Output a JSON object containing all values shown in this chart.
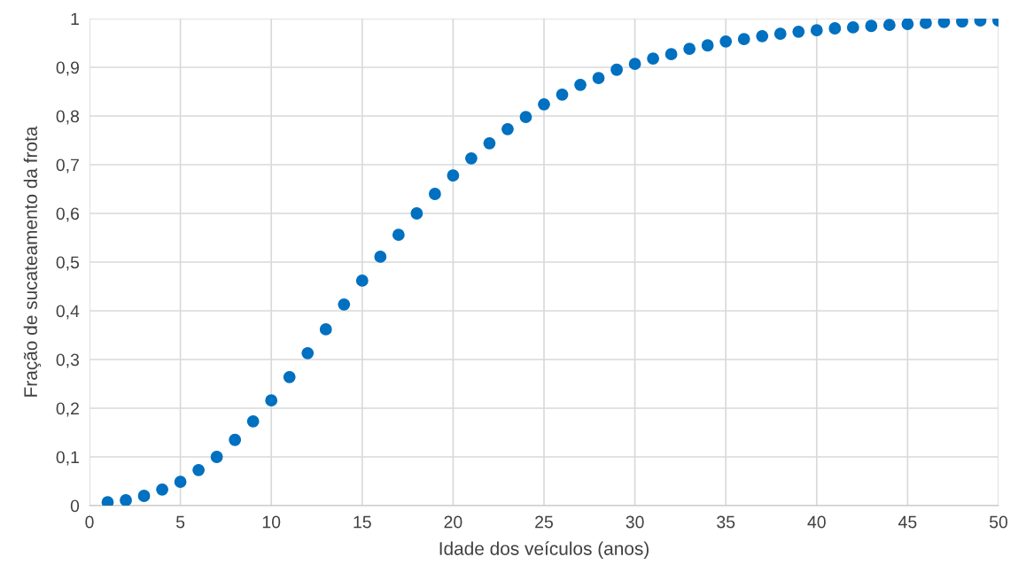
{
  "chart_data": {
    "type": "scatter",
    "xlabel": "Idade dos veículos (anos)",
    "ylabel": "Fração de sucateamento da frota",
    "x": [
      1,
      2,
      3,
      4,
      5,
      6,
      7,
      8,
      9,
      10,
      11,
      12,
      13,
      14,
      15,
      16,
      17,
      18,
      19,
      20,
      21,
      22,
      23,
      24,
      25,
      26,
      27,
      28,
      29,
      30,
      31,
      32,
      33,
      34,
      35,
      36,
      37,
      38,
      39,
      40,
      41,
      42,
      43,
      44,
      45,
      46,
      47,
      48,
      49,
      50
    ],
    "series": [
      {
        "color": "#0070c0",
        "values": [
          0.007,
          0.011,
          0.02,
          0.033,
          0.049,
          0.073,
          0.1,
          0.135,
          0.173,
          0.216,
          0.264,
          0.313,
          0.362,
          0.413,
          0.462,
          0.511,
          0.556,
          0.6,
          0.64,
          0.678,
          0.713,
          0.744,
          0.773,
          0.798,
          0.824,
          0.844,
          0.864,
          0.878,
          0.895,
          0.907,
          0.918,
          0.927,
          0.938,
          0.945,
          0.953,
          0.958,
          0.964,
          0.969,
          0.973,
          0.976,
          0.98,
          0.982,
          0.985,
          0.987,
          0.989,
          0.991,
          0.993,
          0.994,
          0.996,
          0.996
        ]
      }
    ],
    "marker": "circle",
    "xlim": [
      0,
      50
    ],
    "xticks": [
      0,
      5,
      10,
      15,
      20,
      25,
      30,
      35,
      40,
      45,
      50
    ],
    "ylim": [
      0,
      1
    ],
    "yticks": [
      0,
      {
        "value": 0.1,
        "label": "0,1"
      },
      {
        "value": 0.2,
        "label": "0,2"
      },
      {
        "value": 0.3,
        "label": "0,3"
      },
      {
        "value": 0.4,
        "label": "0,4"
      },
      {
        "value": 0.5,
        "label": "0,5"
      },
      {
        "value": 0.6,
        "label": "0,6"
      },
      {
        "value": 0.7,
        "label": "0,7"
      },
      {
        "value": 0.8,
        "label": "0,8"
      },
      {
        "value": 0.9,
        "label": "0,9"
      },
      1
    ],
    "grid": true
  }
}
